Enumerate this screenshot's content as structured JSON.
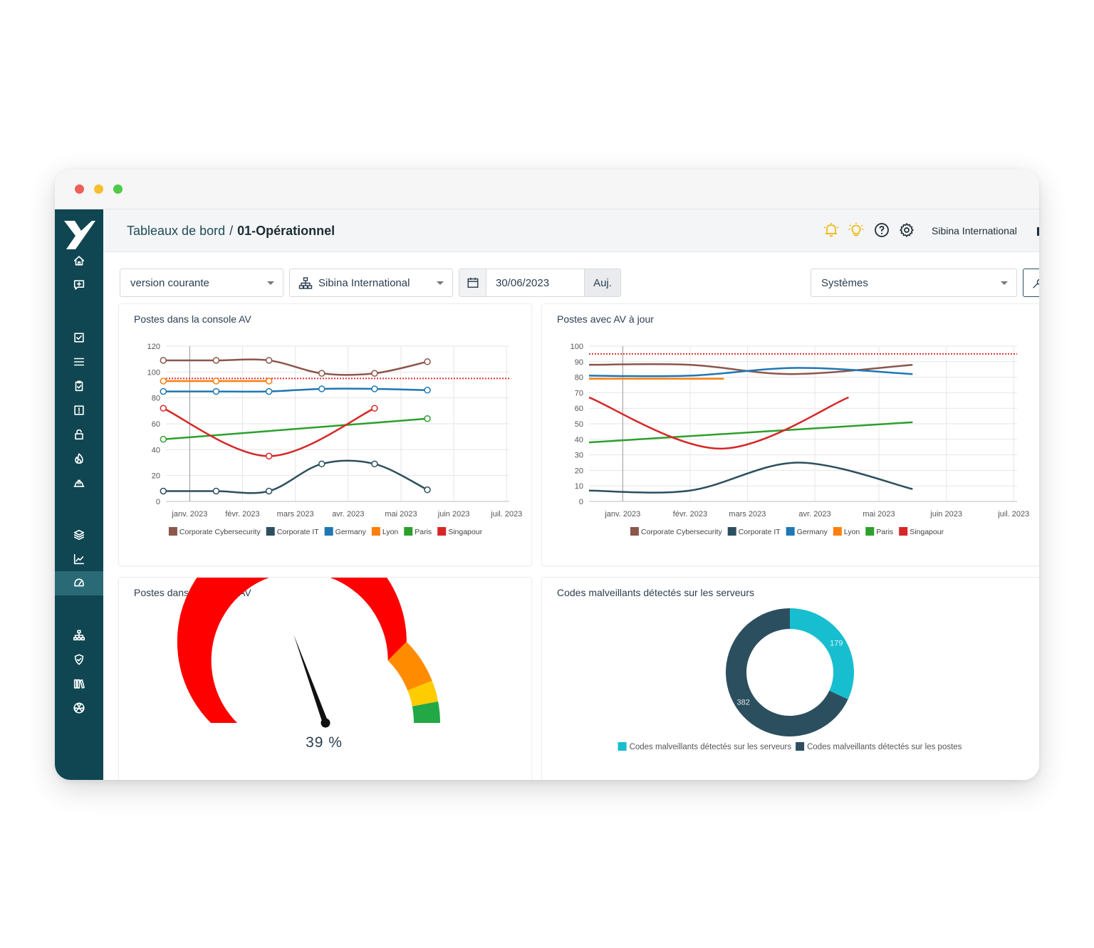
{
  "window": {
    "controls": {
      "close": "#ed5f57",
      "minimize": "#f5bf2f",
      "maximize": "#4ecb44"
    }
  },
  "sidebar": {
    "background": "#0f4651",
    "active_color": "#2a6a76",
    "items": [
      {
        "icon": "home-icon"
      },
      {
        "icon": "message-plus-icon"
      },
      {
        "icon": "checkbox-icon"
      },
      {
        "icon": "list-icon"
      },
      {
        "icon": "clipboard-check-icon"
      },
      {
        "icon": "alert-square-icon"
      },
      {
        "icon": "lock-icon"
      },
      {
        "icon": "fire-icon"
      },
      {
        "icon": "hard-hat-icon"
      },
      {
        "icon": "layers-icon"
      },
      {
        "icon": "chart-line-icon"
      },
      {
        "icon": "gauge-icon",
        "active": true
      },
      {
        "icon": "sitemap-icon"
      },
      {
        "icon": "shield-check-icon"
      },
      {
        "icon": "library-icon"
      },
      {
        "icon": "radiation-icon"
      }
    ]
  },
  "header": {
    "breadcrumb_root": "Tableaux de bord",
    "breadcrumb_separator": "/",
    "breadcrumb_current": "01-Opérationnel",
    "icons": [
      "bell-icon",
      "lightbulb-icon",
      "help-icon",
      "gear-icon"
    ],
    "org": "Sibina International"
  },
  "filters": {
    "version": "version courante",
    "entity": "Sibina International",
    "date": "30/06/2023",
    "today_button": "Auj.",
    "category": "Systèmes"
  },
  "cards": {
    "c1_title": "Postes dans la console AV",
    "c2_title": "Postes avec AV à jour",
    "c3_title": "Postes dans la console AV",
    "c4_title": "Codes malveillants détectés sur les serveurs"
  },
  "chart_data": [
    {
      "type": "line",
      "title": "Postes dans la console AV",
      "x_tick_labels": [
        "janv. 2023",
        "févr. 2023",
        "mars 2023",
        "avr. 2023",
        "mai 2023",
        "juin 2023",
        "juil. 2023"
      ],
      "x_domain": [
        -0.45,
        6.05
      ],
      "x_label_positions": [
        0,
        1,
        2,
        3,
        4,
        5,
        6
      ],
      "ylim": [
        0,
        120
      ],
      "y_ticks": [
        0,
        20,
        40,
        60,
        80,
        100,
        120
      ],
      "target_line": 95,
      "target_color": "#e03131",
      "markers": true,
      "grid": true,
      "legend_position": "bottom",
      "series": [
        {
          "name": "Corporate Cybersecurity",
          "color": "#8c564b",
          "x": [
            -0.5,
            0.5,
            1.5,
            2.5,
            3.5,
            4.5
          ],
          "values": [
            109,
            109,
            109,
            99,
            99,
            108
          ]
        },
        {
          "name": "Corporate IT",
          "color": "#2c4f5f",
          "x": [
            -0.5,
            0.5,
            1.5,
            2.5,
            3.5,
            4.5
          ],
          "values": [
            8,
            8,
            8,
            29,
            29,
            9
          ]
        },
        {
          "name": "Germany",
          "color": "#1f77b4",
          "x": [
            -0.5,
            0.5,
            1.5,
            2.5,
            3.5,
            4.5
          ],
          "values": [
            85,
            85,
            85,
            87,
            87,
            86
          ]
        },
        {
          "name": "Lyon",
          "color": "#ff7f0e",
          "x": [
            -0.5,
            0.5,
            1.5
          ],
          "values": [
            93,
            93,
            93
          ]
        },
        {
          "name": "Paris",
          "color": "#2ca02c",
          "x": [
            -0.5,
            4.5
          ],
          "values": [
            48,
            64
          ]
        },
        {
          "name": "Singapour",
          "color": "#d62728",
          "x": [
            -0.5,
            1.5,
            3.5
          ],
          "values": [
            72,
            35,
            72
          ]
        }
      ]
    },
    {
      "type": "line",
      "title": "Postes avec AV à jour",
      "x_tick_labels": [
        "janv. 2023",
        "févr. 2023",
        "mars 2023",
        "avr. 2023",
        "mai 2023",
        "juin 2023",
        "juil. 2023"
      ],
      "x_domain": [
        -0.5,
        5.85
      ],
      "x_label_positions": [
        0,
        1,
        1.85,
        2.85,
        3.8,
        4.8,
        5.8
      ],
      "ylim": [
        0,
        100
      ],
      "y_ticks": [
        0,
        10,
        20,
        30,
        40,
        50,
        60,
        70,
        80,
        90,
        100
      ],
      "target_line": 95,
      "target_color": "#e03131",
      "markers": false,
      "grid": true,
      "legend_position": "bottom",
      "series": [
        {
          "name": "Corporate Cybersecurity",
          "color": "#8c564b",
          "x": [
            -0.5,
            1.0,
            2.5,
            4.3
          ],
          "values": [
            88,
            88,
            82,
            88
          ]
        },
        {
          "name": "Corporate IT",
          "color": "#2c4f5f",
          "x": [
            -0.5,
            1.0,
            2.6,
            4.3
          ],
          "values": [
            7,
            7,
            25,
            8
          ]
        },
        {
          "name": "Germany",
          "color": "#1f77b4",
          "x": [
            -0.5,
            1.0,
            2.6,
            4.3
          ],
          "values": [
            81,
            81,
            86,
            82
          ]
        },
        {
          "name": "Lyon",
          "color": "#ff7f0e",
          "x": [
            -0.5,
            1.5
          ],
          "values": [
            79,
            79
          ]
        },
        {
          "name": "Paris",
          "color": "#2ca02c",
          "x": [
            -0.5,
            4.3
          ],
          "values": [
            38,
            51
          ]
        },
        {
          "name": "Singapour",
          "color": "#d62728",
          "x": [
            -0.5,
            1.45,
            3.35
          ],
          "values": [
            67,
            34,
            67
          ]
        }
      ]
    },
    {
      "type": "gauge",
      "title": "Postes dans la console AV",
      "value": 39,
      "display": "39 %",
      "bands": [
        {
          "from": 0,
          "to": 0.75,
          "color": "#ff0000"
        },
        {
          "from": 0.75,
          "to": 0.88,
          "color": "#ff8c00"
        },
        {
          "from": 0.88,
          "to": 0.94,
          "color": "#ffcc00"
        },
        {
          "from": 0.94,
          "to": 1.0,
          "color": "#22a845"
        }
      ]
    },
    {
      "type": "pie",
      "variant": "donut",
      "title": "Codes malveillants détectés sur les serveurs",
      "legend_position": "bottom",
      "slices": [
        {
          "label": "Codes malveillants détectés sur les serveurs",
          "value": 179,
          "color": "#17becf"
        },
        {
          "label": "Codes malveillants détectés sur les postes",
          "value": 382,
          "color": "#2c4f5f"
        }
      ]
    }
  ]
}
